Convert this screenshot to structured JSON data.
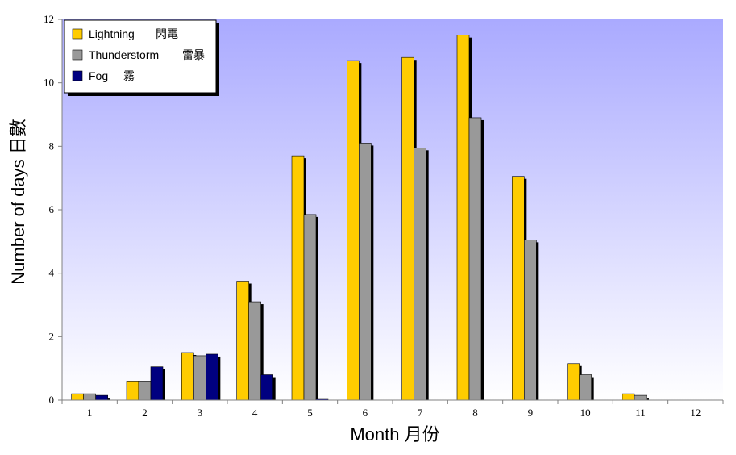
{
  "chart_data": {
    "type": "bar",
    "categories": [
      "1",
      "2",
      "3",
      "4",
      "5",
      "6",
      "7",
      "8",
      "9",
      "10",
      "11",
      "12"
    ],
    "series": [
      {
        "name": "Lightning",
        "name_zh": "閃電",
        "color": "#FFCC00",
        "values": [
          0.2,
          0.6,
          1.5,
          3.75,
          7.7,
          10.7,
          10.8,
          11.5,
          7.05,
          1.15,
          0.2,
          0.0
        ]
      },
      {
        "name": "Thunderstorm",
        "name_zh": "雷暴",
        "color": "#999999",
        "values": [
          0.2,
          0.6,
          1.4,
          3.1,
          5.85,
          8.1,
          7.95,
          8.9,
          5.05,
          0.8,
          0.15,
          0.0
        ]
      },
      {
        "name": "Fog",
        "name_zh": "霧",
        "color": "#000080",
        "values": [
          0.15,
          1.05,
          1.45,
          0.8,
          0.05,
          0.0,
          0.0,
          0.0,
          0.0,
          0.0,
          0.0,
          0.0
        ]
      }
    ],
    "title": "",
    "xlabel": "Month 月份",
    "ylabel": "Number of days 日數",
    "ylim": [
      0,
      12
    ],
    "yticks": [
      "0",
      "2",
      "4",
      "6",
      "8",
      "10",
      "12"
    ],
    "grid": false,
    "legend_position": "top-left",
    "background": "gradient light lavender to white"
  }
}
